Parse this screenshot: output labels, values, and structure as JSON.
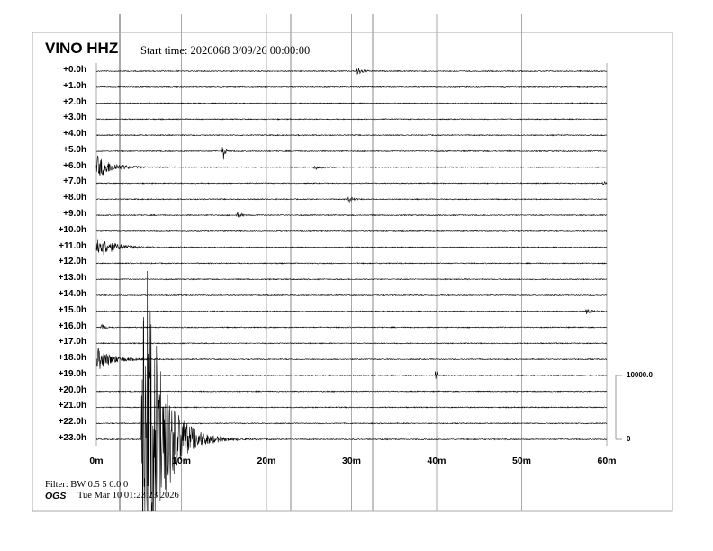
{
  "header": {
    "station": "VINO HHZ",
    "start_time": "Start time: 2026068  3/09/26 00:00:00"
  },
  "footer": {
    "filter": "Filter: BW 0.5 5 0.0 0",
    "agency": "OGS",
    "timestamp": "Tue Mar 10 01:23:23 2026"
  },
  "chart_data": {
    "type": "line",
    "subtype": "helicorder",
    "row_labels": [
      "+0.0h",
      "+1.0h",
      "+2.0h",
      "+3.0h",
      "+4.0h",
      "+5.0h",
      "+6.0h",
      "+7.0h",
      "+8.0h",
      "+9.0h",
      "+10.0h",
      "+11.0h",
      "+12.0h",
      "+13.0h",
      "+14.0h",
      "+15.0h",
      "+16.0h",
      "+17.0h",
      "+18.0h",
      "+19.0h",
      "+20.0h",
      "+21.0h",
      "+22.0h",
      "+23.0h"
    ],
    "x_tick_labels": [
      "0m",
      "10m",
      "20m",
      "30m",
      "40m",
      "50m",
      "60m"
    ],
    "xlim": [
      0,
      60
    ],
    "scale_bar": {
      "top_label": "10000.0",
      "bottom_label": "0",
      "value": 10000
    },
    "noise_amplitude": 90,
    "trace_color": "#000000",
    "grid_color": "#aaaaaa",
    "events": [
      {
        "hour": 0,
        "minute": 30.5,
        "amplitude": 700,
        "duration": 1.5
      },
      {
        "hour": 5,
        "minute": 14.8,
        "amplitude": 1500,
        "duration": 0.5
      },
      {
        "hour": 6,
        "minute": 0.0,
        "amplitude": 1800,
        "duration": 5
      },
      {
        "hour": 6,
        "minute": 25.5,
        "amplitude": 400,
        "duration": 2
      },
      {
        "hour": 7,
        "minute": 59.5,
        "amplitude": 500,
        "duration": 0.5
      },
      {
        "hour": 8,
        "minute": 29.5,
        "amplitude": 500,
        "duration": 1.5
      },
      {
        "hour": 9,
        "minute": 16.5,
        "amplitude": 600,
        "duration": 1
      },
      {
        "hour": 11,
        "minute": 0.0,
        "amplitude": 1800,
        "duration": 5
      },
      {
        "hour": 15,
        "minute": 57.5,
        "amplitude": 400,
        "duration": 2
      },
      {
        "hour": 16,
        "minute": 0.5,
        "amplitude": 500,
        "duration": 1
      },
      {
        "hour": 18,
        "minute": 0.0,
        "amplitude": 1800,
        "duration": 5
      },
      {
        "hour": 19,
        "minute": 39.8,
        "amplitude": 1200,
        "duration": 0.3
      },
      {
        "hour": 23,
        "minute": 5.3,
        "amplitude": 35000,
        "duration": 6
      }
    ]
  }
}
